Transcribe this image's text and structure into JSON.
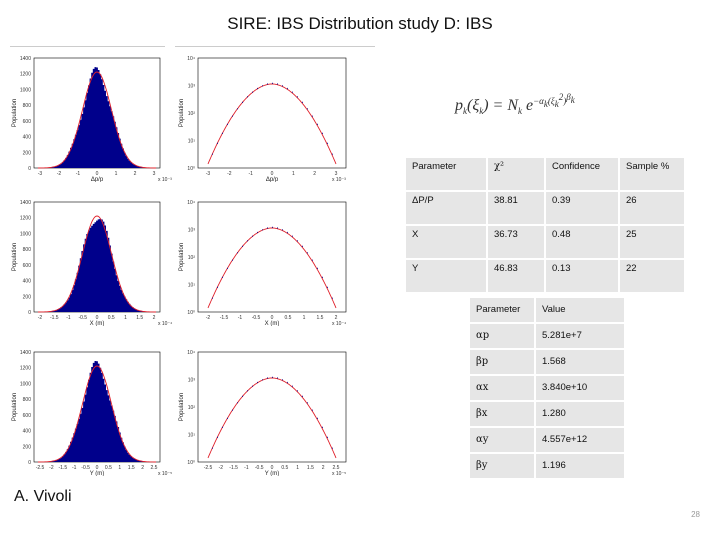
{
  "slide": {
    "title": "SIRE: IBS Distribution study D: IBS",
    "author": "A. Vivoli",
    "page_number": "28",
    "formula": "p_k(ξ_k) = N_k e^(−α_k (ξ_k^2)^β_k)"
  },
  "colors": {
    "histogram": "#00008b",
    "fit_line": "#e0202a",
    "table_bg": "#e6e6e6"
  },
  "plots": [
    {
      "row": "dp",
      "hist_xlabel": "Δp/p",
      "hist_ylabel": "Population",
      "hist_exp": "x 10⁻³",
      "hist_yticks": [
        "1400",
        "1200",
        "1000",
        "800",
        "600",
        "400",
        "200",
        "0"
      ],
      "hist_xticks": [
        "-3",
        "-2",
        "-1",
        "0",
        "1",
        "2",
        "3"
      ],
      "log_xlabel": "Δp/p",
      "log_ylabel": "Population",
      "log_exp": "x 10⁻³",
      "log_yticks": [
        "10⁴",
        "10³",
        "10²",
        "10¹",
        "10⁰"
      ],
      "log_xticks": [
        "-3",
        "-2",
        "-1",
        "0",
        "1",
        "2",
        "3"
      ]
    },
    {
      "row": "x",
      "hist_xlabel": "X (m)",
      "hist_ylabel": "Population",
      "hist_exp": "x 10⁻⁴",
      "hist_yticks": [
        "1400",
        "1200",
        "1000",
        "800",
        "600",
        "400",
        "200",
        "0"
      ],
      "hist_xticks": [
        "-2",
        "-1.5",
        "-1",
        "-0.5",
        "0",
        "0.5",
        "1",
        "1.5",
        "2"
      ],
      "log_xlabel": "X (m)",
      "log_ylabel": "Population",
      "log_exp": "x 10⁻⁴",
      "log_yticks": [
        "10⁴",
        "10³",
        "10²",
        "10¹",
        "10⁰"
      ],
      "log_xticks": [
        "-2",
        "-1.5",
        "-1",
        "-0.5",
        "0",
        "0.5",
        "1",
        "1.5",
        "2"
      ]
    },
    {
      "row": "y",
      "hist_xlabel": "Y (m)",
      "hist_ylabel": "Population",
      "hist_exp": "x 10⁻⁵",
      "hist_yticks": [
        "1400",
        "1200",
        "1000",
        "800",
        "600",
        "400",
        "200",
        "0"
      ],
      "hist_xticks": [
        "-2.5",
        "-2",
        "-1.5",
        "-1",
        "-0.5",
        "0",
        "0.5",
        "1",
        "1.5",
        "2",
        "2.5"
      ],
      "log_xlabel": "Y (m)",
      "log_ylabel": "Population",
      "log_exp": "x 10⁻⁵",
      "log_yticks": [
        "10⁴",
        "10³",
        "10²",
        "10¹",
        "10⁰"
      ],
      "log_xticks": [
        "-2.5",
        "-2",
        "-1.5",
        "-1",
        "-0.5",
        "0",
        "0.5",
        "1",
        "1.5",
        "2",
        "2.5"
      ]
    }
  ],
  "table1": {
    "headers": [
      "Parameter",
      "χ²",
      "Confidence",
      "Sample %"
    ],
    "rows": [
      [
        "ΔP/P",
        "38.81",
        "0.39",
        "26"
      ],
      [
        "X",
        "36.73",
        "0.48",
        "25"
      ],
      [
        "Y",
        "46.83",
        "0.13",
        "22"
      ]
    ]
  },
  "table2": {
    "headers": [
      "Parameter",
      "Value"
    ],
    "rows": [
      [
        "αp",
        "5.281e+7"
      ],
      [
        "βp",
        "1.568"
      ],
      [
        "αx",
        "3.840e+10"
      ],
      [
        "βx",
        "1.280"
      ],
      [
        "αy",
        "4.557e+12"
      ],
      [
        "βy",
        "1.196"
      ]
    ]
  }
}
